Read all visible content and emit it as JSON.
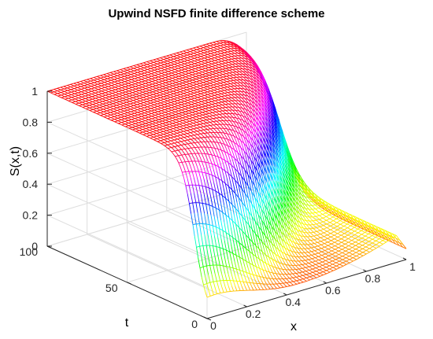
{
  "chart_data": {
    "type": "surface",
    "title": "Upwind NSFD finite difference scheme",
    "xlabel": "x",
    "ylabel": "t",
    "zlabel": "S(x,t)",
    "xlim": [
      0,
      1
    ],
    "ylim": [
      0,
      100
    ],
    "zlim": [
      0,
      1
    ],
    "x_ticks": [
      "0",
      "0.2",
      "0.4",
      "0.6",
      "0.8",
      "1"
    ],
    "t_ticks": [
      "0",
      "50",
      "100"
    ],
    "z_ticks": [
      "0",
      "0.2",
      "0.4",
      "0.6",
      "0.8",
      "1"
    ],
    "grid": true,
    "colormap": "hsv",
    "colormap_stops": [
      "#ff0000",
      "#ff00ff",
      "#0000ff",
      "#00ffff",
      "#00ff00",
      "#ffff00",
      "#ff0000"
    ],
    "surface_samples": {
      "x": [
        0,
        0.2,
        0.4,
        0.6,
        0.8,
        0.9,
        0.95,
        1
      ],
      "S_at_t0": [
        0.02,
        0.03,
        0.05,
        0.08,
        0.12,
        0.18,
        0.22,
        0.08
      ],
      "S_at_t100": [
        1,
        1,
        1,
        1,
        1,
        0.99,
        0.97,
        0.9
      ]
    }
  }
}
